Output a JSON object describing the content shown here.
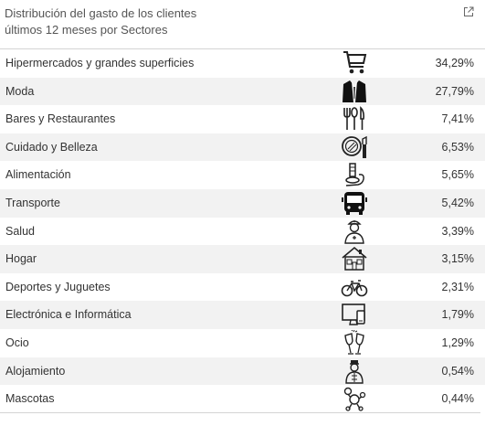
{
  "header": {
    "title_line1": "Distribución del gasto de los clientes",
    "title_line2": "últimos 12 meses por Sectores",
    "export_icon": "external-link-icon"
  },
  "rows": [
    {
      "label": "Hipermercados y grandes superficies",
      "value": "34,29%",
      "icon": "shopping-cart-icon"
    },
    {
      "label": "Moda",
      "value": "27,79%",
      "icon": "suit-jacket-icon"
    },
    {
      "label": "Bares y Restaurantes",
      "value": "7,41%",
      "icon": "cutlery-icon"
    },
    {
      "label": "Cuidado y Belleza",
      "value": "6,53%",
      "icon": "mirror-lipstick-icon"
    },
    {
      "label": "Alimentación",
      "value": "5,65%",
      "icon": "food-icon"
    },
    {
      "label": "Transporte",
      "value": "5,42%",
      "icon": "bus-icon"
    },
    {
      "label": "Salud",
      "value": "3,39%",
      "icon": "nurse-icon"
    },
    {
      "label": "Hogar",
      "value": "3,15%",
      "icon": "house-icon"
    },
    {
      "label": "Deportes y Juguetes",
      "value": "2,31%",
      "icon": "bicycle-icon"
    },
    {
      "label": "Electrónica e Informática",
      "value": "1,79%",
      "icon": "computer-phone-icon"
    },
    {
      "label": "Ocio",
      "value": "1,29%",
      "icon": "champagne-glasses-icon"
    },
    {
      "label": "Alojamiento",
      "value": "0,54%",
      "icon": "bellhop-icon"
    },
    {
      "label": "Mascotas",
      "value": "0,44%",
      "icon": "poodle-icon"
    }
  ]
}
